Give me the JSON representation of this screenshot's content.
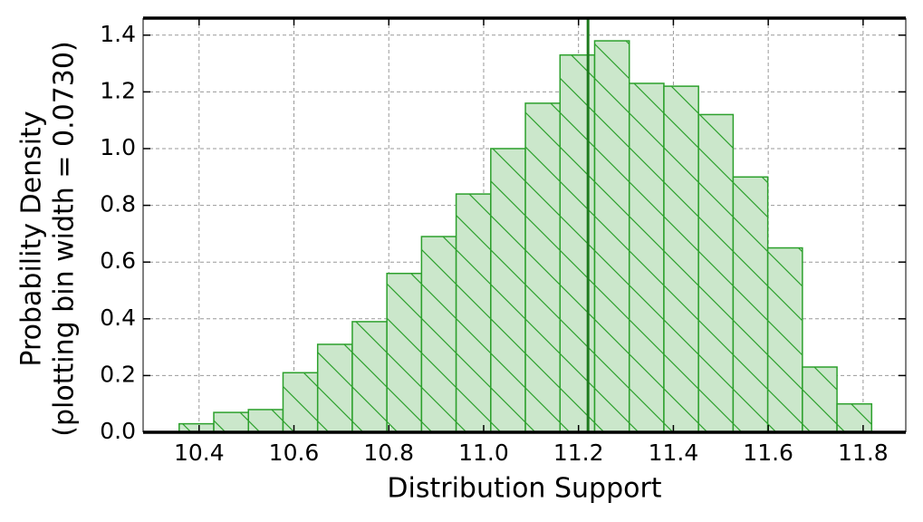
{
  "chart_data": {
    "type": "histogram",
    "xlabel": "Distribution Support",
    "ylabel": [
      "Probability Density",
      "(plotting bin width = 0.0730)"
    ],
    "bins": [
      10.358,
      10.431,
      10.504,
      10.577,
      10.65,
      10.723,
      10.796,
      10.869,
      10.942,
      11.015,
      11.088,
      11.161,
      11.234,
      11.307,
      11.38,
      11.453,
      11.526,
      11.599,
      11.672,
      11.745,
      11.818
    ],
    "values": [
      0.03,
      0.07,
      0.08,
      0.21,
      0.31,
      0.39,
      0.56,
      0.69,
      0.84,
      1.0,
      1.16,
      1.33,
      1.38,
      1.23,
      1.22,
      1.12,
      0.9,
      0.65,
      0.23,
      0.1
    ],
    "color": "#2ca02c",
    "fill_color": "#cbe7cb",
    "vline": 11.22,
    "vline_color": "#1e7b1e",
    "xlim": [
      10.282,
      11.89
    ],
    "xticks": [
      {
        "value": 10.4,
        "label": "10.4"
      },
      10.6,
      10.8,
      {
        "value": 11.0,
        "label": "11.0"
      },
      11.2,
      11.4,
      11.6,
      11.8
    ],
    "ylim": [
      0,
      1.46
    ],
    "yticks": [
      {
        "value": 0,
        "label": "0.0"
      },
      0.2,
      0.4,
      0.6,
      0.8,
      {
        "value": 1.0,
        "label": "1.0"
      },
      1.2,
      1.4
    ],
    "grid": true
  }
}
